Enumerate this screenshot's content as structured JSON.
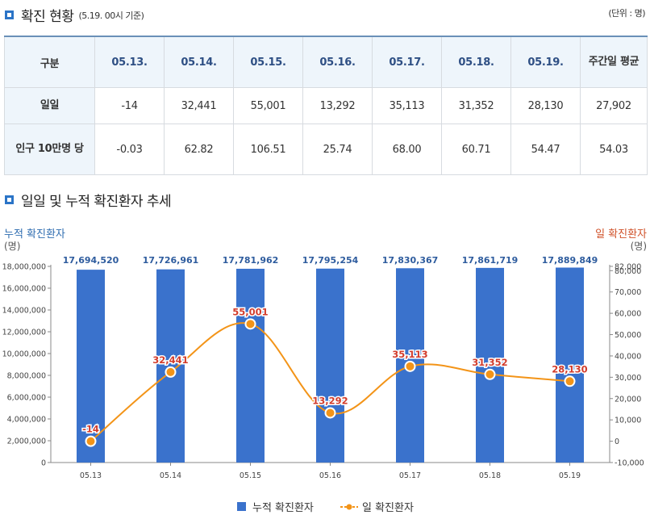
{
  "status_section": {
    "title": "확진 현황",
    "subtitle": "(5.19. 00시 기준)",
    "unit": "(단위 : 명)"
  },
  "table": {
    "headers": [
      "구분",
      "05.13.",
      "05.14.",
      "05.15.",
      "05.16.",
      "05.17.",
      "05.18.",
      "05.19.",
      "주간일 평균"
    ],
    "rows": [
      {
        "label": "일일",
        "values": [
          "-14",
          "32,441",
          "55,001",
          "13,292",
          "35,113",
          "31,352",
          "28,130",
          "27,902"
        ]
      },
      {
        "label": "인구 10만명 당",
        "values": [
          "-0.03",
          "62.82",
          "106.51",
          "25.74",
          "68.00",
          "60.71",
          "54.47",
          "54.03"
        ]
      }
    ]
  },
  "trend_section": {
    "title": "일일 및 누적 확진환자 추세",
    "left_axis_title": "누적 확진환자",
    "left_axis_unit": "(명)",
    "right_axis_title": "일 확진환자",
    "right_axis_unit": "(명)"
  },
  "chart_data": {
    "type": "bar+line",
    "categories": [
      "05.13",
      "05.14",
      "05.15",
      "05.16",
      "05.17",
      "05.18",
      "05.19"
    ],
    "series": [
      {
        "name": "누적 확진환자",
        "type": "bar",
        "axis": "left",
        "color": "#3a72cc",
        "values": [
          17694520,
          17726961,
          17781962,
          17795254,
          17830367,
          17861719,
          17889849
        ],
        "labels": [
          "17,694,520",
          "17,726,961",
          "17,781,962",
          "17,795,254",
          "17,830,367",
          "17,861,719",
          "17,889,849"
        ]
      },
      {
        "name": "일 확진환자",
        "type": "line",
        "axis": "right",
        "color": "#f39418",
        "values": [
          -14,
          32441,
          55001,
          13292,
          35113,
          31352,
          28130
        ],
        "labels": [
          "-14",
          "32,441",
          "55,001",
          "13,292",
          "35,113",
          "31,352",
          "28,130"
        ]
      }
    ],
    "left_axis": {
      "min": 0,
      "max": 18000000,
      "ticks": [
        0,
        2000000,
        4000000,
        6000000,
        8000000,
        10000000,
        12000000,
        14000000,
        16000000,
        18000000
      ],
      "tick_labels": [
        "0",
        "2,000,000",
        "4,000,000",
        "6,000,000",
        "8,000,000",
        "10,000,000",
        "12,000,000",
        "14,000,000",
        "16,000,000",
        "18,000,000"
      ]
    },
    "right_axis": {
      "min": -10000,
      "max": 82000,
      "ticks": [
        -10000,
        0,
        10000,
        20000,
        30000,
        40000,
        50000,
        60000,
        70000,
        80000,
        82000
      ],
      "tick_labels": [
        "-10,000",
        "0",
        "10,000",
        "20,000",
        "30,000",
        "40,000",
        "50,000",
        "60,000",
        "70,000",
        "80,000",
        "82,000"
      ]
    },
    "colors": {
      "bar_label": "#2e5c9e",
      "line_label": "#d23c2c",
      "left_title": "#2f6db0",
      "right_title": "#d0522a"
    },
    "legend": [
      {
        "name": "누적 확진환자",
        "kind": "bar"
      },
      {
        "name": "일 확진환자",
        "kind": "line"
      }
    ]
  }
}
